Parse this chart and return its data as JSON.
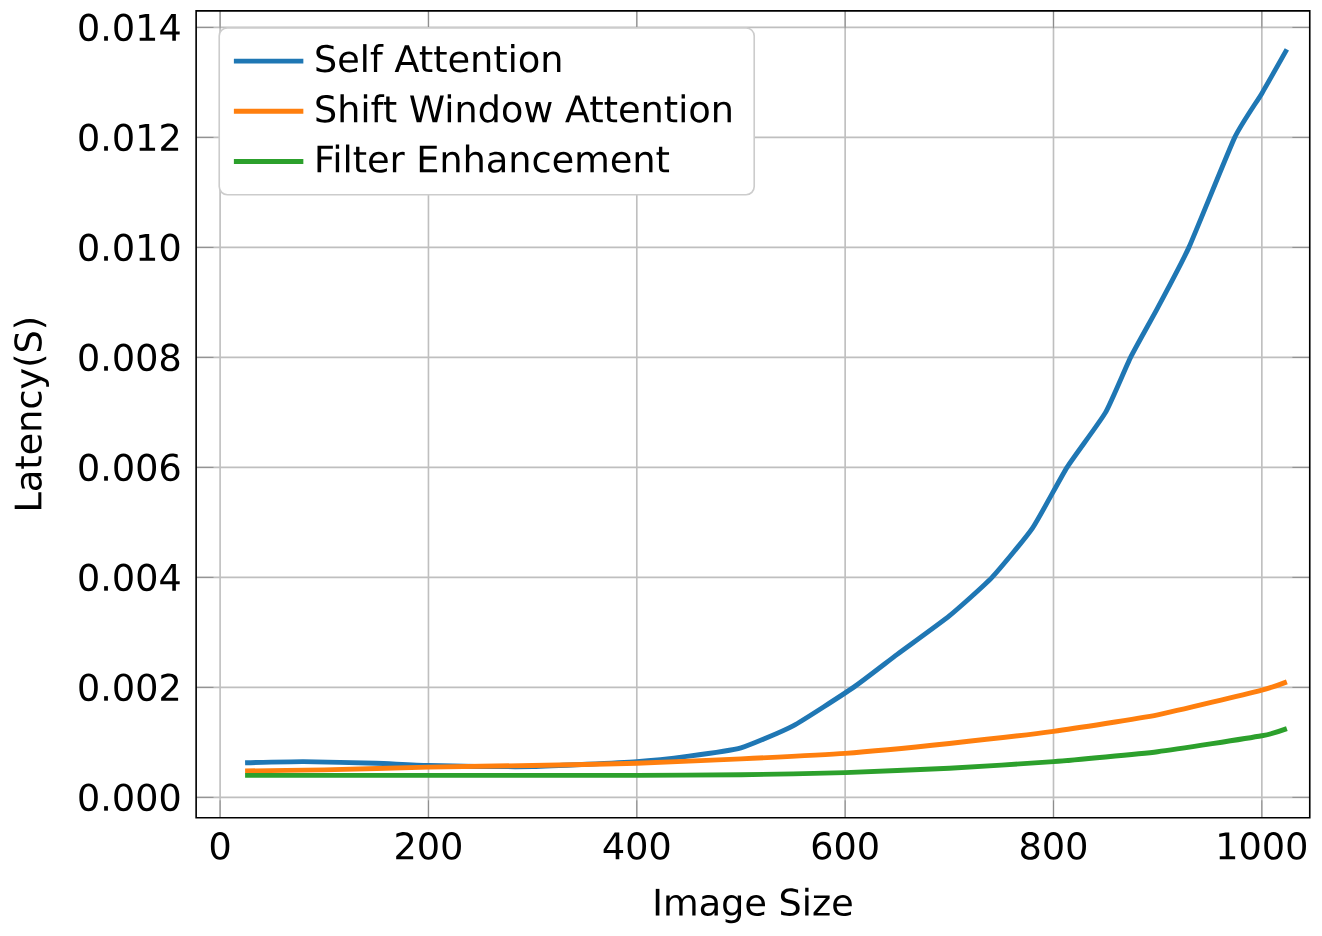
{
  "chart_data": {
    "type": "line",
    "xlabel": "Image Size",
    "ylabel": "Latency(S)",
    "xlim": [
      -23,
      1046
    ],
    "ylim": [
      -0.00037,
      0.0143
    ],
    "xticks": [
      0,
      200,
      400,
      600,
      800,
      1000
    ],
    "yticks": [
      {
        "value": 0,
        "label": "0.000"
      },
      {
        "value": 0.002,
        "label": "0.002"
      },
      {
        "value": 0.004,
        "label": "0.004"
      },
      {
        "value": 0.006,
        "label": "0.006"
      },
      {
        "value": 0.008,
        "label": "0.008"
      },
      {
        "value": 0.01,
        "label": "0.010"
      },
      {
        "value": 0.012,
        "label": "0.012"
      },
      {
        "value": 0.014,
        "label": "0.014"
      }
    ],
    "grid": true,
    "legend": "top left",
    "marker": "none",
    "line_style": "solid",
    "series": [
      {
        "name": "Self Attention",
        "color": "#1f77b4",
        "x": [
          24,
          80,
          150,
          200,
          300,
          400,
          450,
          500,
          550,
          608,
          650,
          700,
          741,
          780,
          813,
          850,
          874,
          900,
          930,
          974,
          1000,
          1024
        ],
        "values": [
          0.00063,
          0.00065,
          0.00062,
          0.00058,
          0.00056,
          0.00065,
          0.00075,
          0.0009,
          0.0013,
          0.002,
          0.0026,
          0.0033,
          0.004,
          0.0049,
          0.006,
          0.007,
          0.008,
          0.0089,
          0.01,
          0.012,
          0.0128,
          0.0136
        ]
      },
      {
        "name": "Shift Window Attention",
        "color": "#ff7f0e",
        "x": [
          24,
          100,
          200,
          300,
          400,
          500,
          600,
          700,
          800,
          900,
          1000,
          1024
        ],
        "values": [
          0.00048,
          0.0005,
          0.00055,
          0.00058,
          0.00062,
          0.0007,
          0.0008,
          0.00098,
          0.0012,
          0.0015,
          0.00195,
          0.0021
        ]
      },
      {
        "name": "Filter Enhancement",
        "color": "#2ca02c",
        "x": [
          24,
          200,
          400,
          500,
          600,
          700,
          800,
          900,
          1000,
          1024
        ],
        "values": [
          0.0004,
          0.0004,
          0.0004,
          0.00041,
          0.00045,
          0.00053,
          0.00065,
          0.00083,
          0.00112,
          0.00125
        ]
      }
    ]
  }
}
